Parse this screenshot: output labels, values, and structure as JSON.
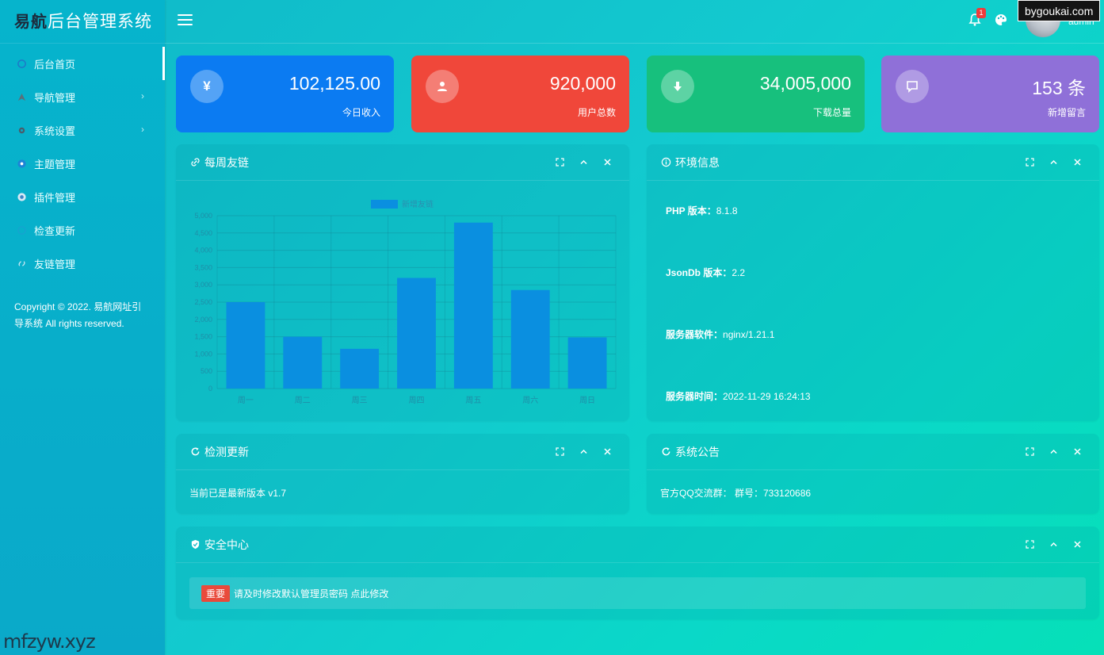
{
  "app": {
    "logo_bold": "易航",
    "logo_rest": "后台管理系统"
  },
  "sidebar": {
    "items": [
      {
        "label": "后台首页",
        "has_arrow": false
      },
      {
        "label": "导航管理",
        "has_arrow": true
      },
      {
        "label": "系统设置",
        "has_arrow": true
      },
      {
        "label": "主题管理",
        "has_arrow": false
      },
      {
        "label": "插件管理",
        "has_arrow": false
      },
      {
        "label": "检查更新",
        "has_arrow": false
      },
      {
        "label": "友链管理",
        "has_arrow": false
      }
    ],
    "copyright": "Copyright © 2022. 易航网址引导系统 All rights reserved."
  },
  "header": {
    "notification_count": "1",
    "username": "admin",
    "site_badge": "bygoukai.com"
  },
  "stats": [
    {
      "value": "102,125.00",
      "label": "今日收入",
      "color": "#0b7bf2",
      "icon": "yen-icon"
    },
    {
      "value": "920,000",
      "label": "用户总数",
      "color": "#f0473a",
      "icon": "user-icon"
    },
    {
      "value": "34,005,000",
      "label": "下载总量",
      "color": "#17c07d",
      "icon": "download-icon"
    },
    {
      "value": "153 条",
      "label": "新增留言",
      "color": "#8f70d8",
      "icon": "comment-icon"
    }
  ],
  "panels": {
    "links": {
      "title": "每周友链"
    },
    "env": {
      "title": "环境信息",
      "rows": [
        {
          "label": "PHP 版本：",
          "value": "8.1.8"
        },
        {
          "label": "JsonDb 版本：",
          "value": "2.2"
        },
        {
          "label": "服务器软件：",
          "value": "nginx/1.21.1"
        },
        {
          "label": "服务器时间：",
          "value": "2022-11-29 16:24:13"
        }
      ]
    },
    "update": {
      "title": "检测更新",
      "text": "当前已是最新版本 v1.7"
    },
    "notice": {
      "title": "系统公告",
      "text": "官方QQ交流群： 群号：733120686"
    },
    "security": {
      "title": "安全中心",
      "tag": "重要",
      "text": "请及时修改默认管理员密码 点此修改"
    }
  },
  "chart_data": {
    "type": "bar",
    "legend": "新增友链",
    "categories": [
      "周一",
      "周二",
      "周三",
      "周四",
      "周五",
      "周六",
      "周日"
    ],
    "values": [
      2500,
      1500,
      1150,
      3200,
      4800,
      2850,
      1480
    ],
    "ylim": [
      0,
      5000
    ],
    "yticks": [
      "0",
      "500",
      "1,000",
      "1,500",
      "2,000",
      "2,500",
      "3,000",
      "3,500",
      "4,000",
      "4,500",
      "5,000"
    ],
    "bar_color": "#0a8fe0",
    "grid": true
  },
  "watermark": "mfzyw.xyz"
}
